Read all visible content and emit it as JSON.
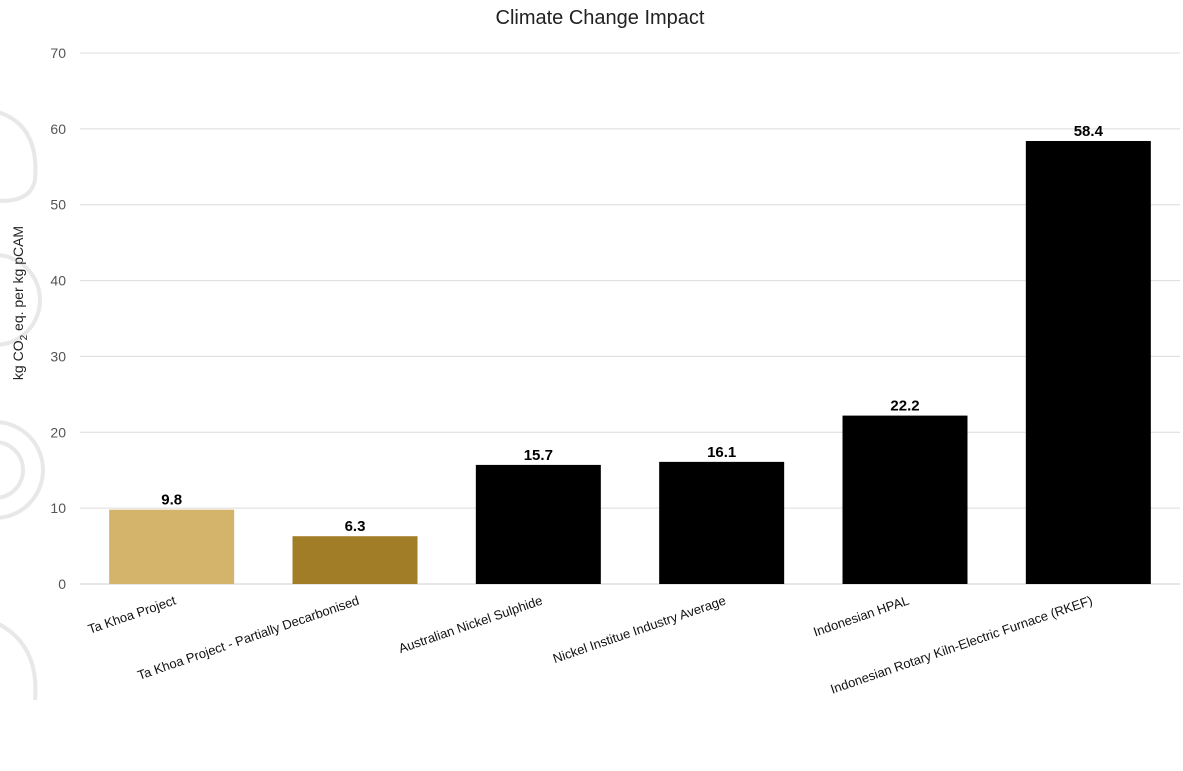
{
  "chart_data": {
    "type": "bar",
    "title": "Climate Change Impact",
    "ylabel": {
      "prefix": "kg CO",
      "subscript": "2",
      "suffix": " eq. per kg pCAM"
    },
    "xlabel": "",
    "ylim": [
      0,
      70
    ],
    "yticks": [
      0,
      10,
      20,
      30,
      40,
      50,
      60,
      70
    ],
    "grid": true,
    "legend": "none",
    "categories": [
      "Ta Khoa Project",
      "Ta Khoa Project - Partially Decarbonised",
      "Australian Nickel Sulphide",
      "Nickel Institue Industry Average",
      "Indonesian HPAL",
      "Indonesian Rotary Kiln-Electric Furnace (RKEF)"
    ],
    "values": [
      9.8,
      6.3,
      15.7,
      16.1,
      22.2,
      58.4
    ],
    "value_labels": [
      "9.8",
      "6.3",
      "15.7",
      "16.1",
      "22.2",
      "58.4"
    ],
    "colors": [
      "#d4b46a",
      "#a27d27",
      "#000000",
      "#000000",
      "#000000",
      "#000000"
    ]
  }
}
